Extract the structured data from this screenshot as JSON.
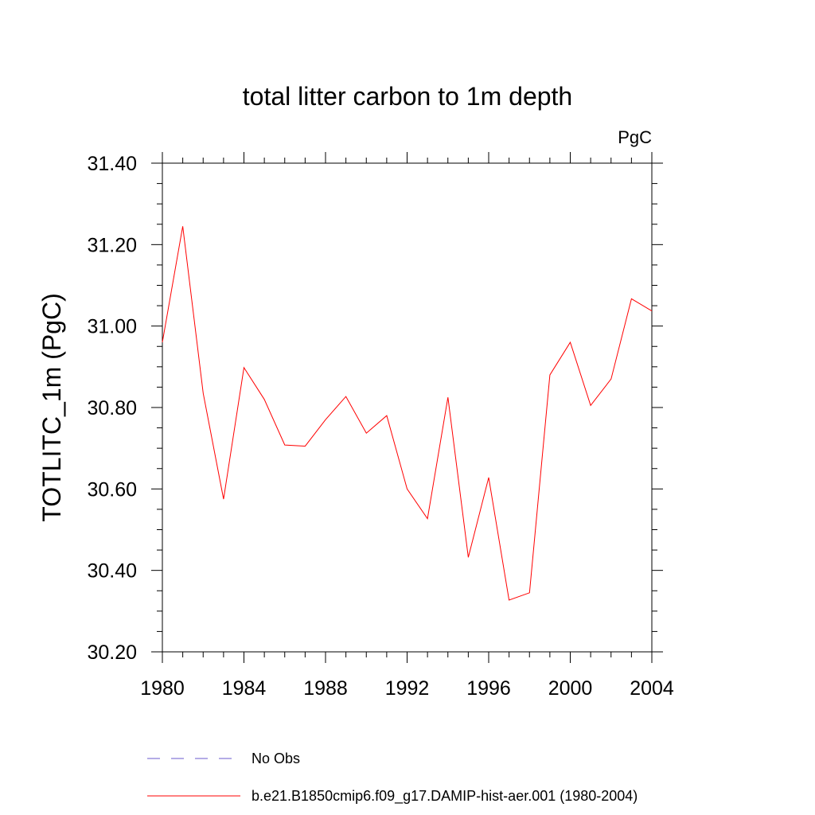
{
  "chart_data": {
    "type": "line",
    "title": "total litter carbon to 1m depth",
    "units_label": "PgC",
    "xlabel": "",
    "ylabel": "TOTLITC_1m  (PgC)",
    "xlim": [
      1980,
      2004
    ],
    "ylim": [
      30.2,
      31.4
    ],
    "x_ticks": [
      1980,
      1984,
      1988,
      1992,
      1996,
      2000,
      2004
    ],
    "x_tick_labels": [
      "1980",
      "1984",
      "1988",
      "1992",
      "1996",
      "2000",
      "2004"
    ],
    "y_ticks": [
      30.2,
      30.4,
      30.6,
      30.8,
      31.0,
      31.2,
      31.4
    ],
    "y_tick_labels": [
      "30.20",
      "30.40",
      "30.60",
      "30.80",
      "31.00",
      "31.20",
      "31.40"
    ],
    "grid": false,
    "legend_position": "bottom",
    "series": [
      {
        "name": "b.e21.B1850cmip6.f09_g17.DAMIP-hist-aer.001 (1980-2004)",
        "color": "#ff0000",
        "line_style": "solid",
        "x": [
          1980,
          1981,
          1982,
          1983,
          1984,
          1985,
          1986,
          1987,
          1988,
          1989,
          1990,
          1991,
          1992,
          1993,
          1994,
          1995,
          1996,
          1997,
          1998,
          1999,
          2000,
          2001,
          2002,
          2003,
          2004
        ],
        "values": [
          30.96,
          31.245,
          30.835,
          30.575,
          30.898,
          30.82,
          30.708,
          30.705,
          30.77,
          30.827,
          30.737,
          30.78,
          30.6,
          30.527,
          30.825,
          30.432,
          30.628,
          30.327,
          30.345,
          30.88,
          30.96,
          30.805,
          30.87,
          31.067,
          31.037
        ]
      }
    ],
    "legend": [
      {
        "name": "No Obs",
        "color": "#6a5acd",
        "line_style": "dashed"
      },
      {
        "name": "b.e21.B1850cmip6.f09_g17.DAMIP-hist-aer.001 (1980-2004)",
        "color": "#ff0000",
        "line_style": "solid"
      }
    ]
  }
}
